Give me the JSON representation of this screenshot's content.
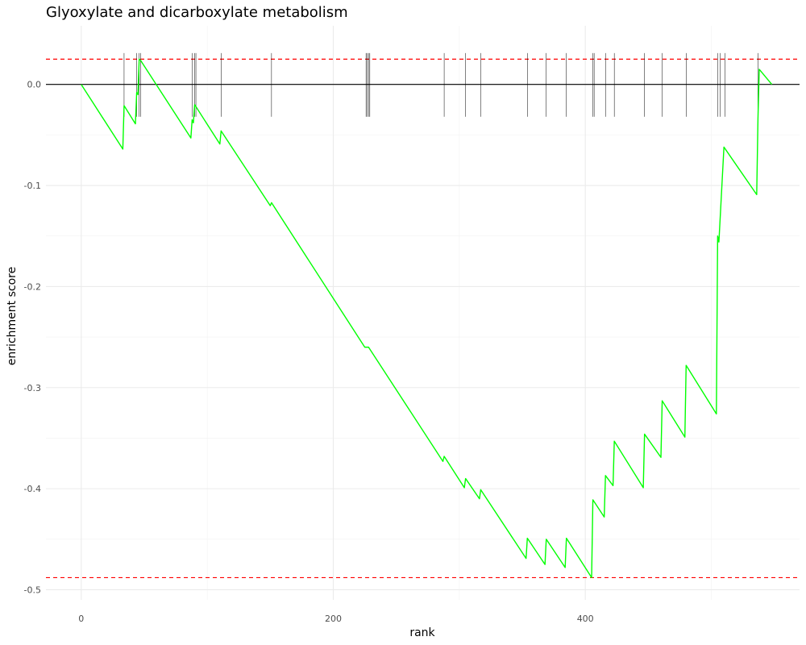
{
  "chart_data": {
    "type": "line",
    "title": "Glyoxylate and dicarboxylate metabolism",
    "xlabel": "rank",
    "ylabel": "enrichment score",
    "xlim": [
      -28,
      570
    ],
    "ylim": [
      -0.51,
      0.058
    ],
    "grid": true,
    "x_ticks": [
      0,
      200,
      400
    ],
    "x_tick_labels": [
      "0",
      "200",
      "400"
    ],
    "y_ticks": [
      0.0,
      -0.1,
      -0.2,
      -0.3,
      -0.4,
      -0.5
    ],
    "y_tick_labels": [
      "0.0",
      "-0.1",
      "-0.2",
      "-0.3",
      "-0.4",
      "-0.5"
    ],
    "zero_line": 0.0,
    "threshold_lines": [
      0.025,
      -0.488
    ],
    "gene_positions": [
      34,
      44,
      46,
      47,
      88,
      90,
      91,
      111,
      151,
      226,
      227,
      228,
      229,
      288,
      305,
      317,
      354,
      369,
      385,
      406,
      407,
      416,
      423,
      447,
      461,
      480,
      505,
      507,
      511,
      537
    ],
    "series": [
      {
        "color": "#00ff00",
        "x": [
          0,
          33,
          34,
          43,
          44,
          45,
          46,
          47,
          87,
          88,
          89,
          90,
          110,
          111,
          150,
          151,
          225,
          228,
          287,
          288,
          304,
          305,
          316,
          317,
          353,
          354,
          368,
          369,
          384,
          385,
          405,
          406,
          415,
          416,
          422,
          423,
          446,
          447,
          460,
          461,
          479,
          480,
          504,
          505,
          506,
          510,
          536,
          537,
          538,
          548
        ],
        "y": [
          0.0,
          -0.064,
          -0.021,
          -0.039,
          -0.008,
          -0.01,
          0.025,
          0.024,
          -0.053,
          -0.035,
          -0.038,
          -0.02,
          -0.059,
          -0.046,
          -0.12,
          -0.117,
          -0.26,
          -0.26,
          -0.373,
          -0.368,
          -0.399,
          -0.39,
          -0.41,
          -0.401,
          -0.469,
          -0.449,
          -0.475,
          -0.45,
          -0.478,
          -0.449,
          -0.488,
          -0.411,
          -0.428,
          -0.387,
          -0.397,
          -0.353,
          -0.399,
          -0.346,
          -0.369,
          -0.313,
          -0.349,
          -0.278,
          -0.326,
          -0.15,
          -0.156,
          -0.062,
          -0.109,
          -0.034,
          0.015,
          0.0
        ]
      }
    ]
  }
}
